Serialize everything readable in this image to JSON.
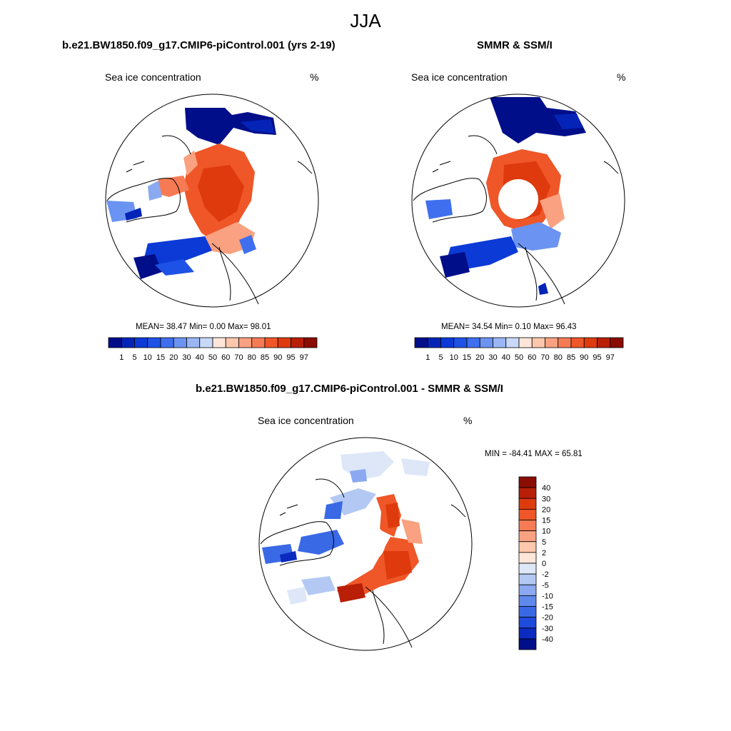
{
  "figure": {
    "season": "JJA"
  },
  "panels": [
    {
      "title": "b.e21.BW1850.f09_g17.CMIP6-piControl.001 (yrs 2-19)",
      "variable": "Sea ice concentration",
      "units": "%",
      "stats": "MEAN=  38.47  Min=    0.00  Max=  98.01"
    },
    {
      "title": "SMMR & SSM/I",
      "variable": "Sea ice concentration",
      "units": "%",
      "stats": "MEAN=  34.54  Min=    0.10  Max=  96.43"
    },
    {
      "title": "b.e21.BW1850.f09_g17.CMIP6-piControl.001 - SMMR & SSM/I",
      "variable": "Sea ice concentration",
      "units": "%",
      "minmax": "MIN = -84.41 MAX =  65.81"
    }
  ],
  "colorbar_main": {
    "labels": [
      "1",
      "5",
      "10",
      "15",
      "20",
      "30",
      "40",
      "50",
      "60",
      "70",
      "80",
      "85",
      "90",
      "95",
      "97"
    ],
    "colors": [
      "#000e8a",
      "#0424b8",
      "#0c3ad6",
      "#1e52e6",
      "#3f6fee",
      "#6b93f2",
      "#9ab6f5",
      "#c8d8f8",
      "#fde6d9",
      "#fcc7ac",
      "#f9a180",
      "#f67b54",
      "#ef5628",
      "#de3a0e",
      "#b81f06",
      "#8a0c02"
    ]
  },
  "colorbar_diff": {
    "labels": [
      "40",
      "30",
      "20",
      "15",
      "10",
      "5",
      "2",
      "0",
      "-2",
      "-5",
      "-10",
      "-15",
      "-20",
      "-30",
      "-40"
    ],
    "colors": [
      "#8a0c02",
      "#b81f06",
      "#de3a0e",
      "#ef5628",
      "#f67b54",
      "#f9a180",
      "#fcc7ac",
      "#fde6d9",
      "#dde7f8",
      "#b3c9f4",
      "#8aa9f0",
      "#6089ec",
      "#3a69e6",
      "#1e4bdc",
      "#0a2ac0",
      "#000e8a"
    ]
  }
}
